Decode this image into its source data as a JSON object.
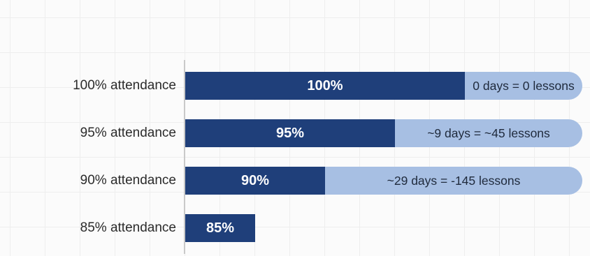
{
  "chart_data": {
    "type": "bar",
    "orientation": "horizontal",
    "categories": [
      "100% attendance",
      "95% attendance",
      "90% attendance",
      "85% attendance"
    ],
    "values": [
      100,
      95,
      90,
      85
    ],
    "value_labels": [
      "100%",
      "95%",
      "90%",
      "85%"
    ],
    "annotations": [
      "0 days = 0 lessons",
      "~9 days = ~45 lessons",
      "~29 days = -145 lessons",
      ""
    ],
    "xlim": [
      80,
      100
    ],
    "grid": true,
    "colors": {
      "bar": "#1f3f7a",
      "annotation_bar": "#a7bfe3"
    }
  }
}
